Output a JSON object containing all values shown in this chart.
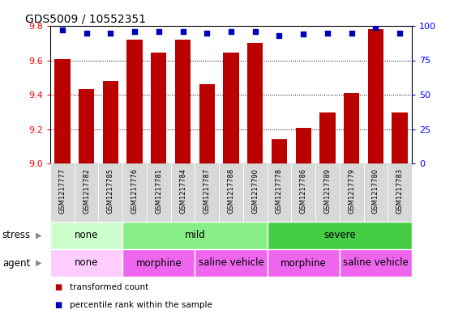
{
  "title": "GDS5009 / 10552351",
  "samples": [
    "GSM1217777",
    "GSM1217782",
    "GSM1217785",
    "GSM1217776",
    "GSM1217781",
    "GSM1217784",
    "GSM1217787",
    "GSM1217788",
    "GSM1217790",
    "GSM1217778",
    "GSM1217786",
    "GSM1217789",
    "GSM1217779",
    "GSM1217780",
    "GSM1217783"
  ],
  "transformed_count": [
    9.605,
    9.435,
    9.48,
    9.72,
    9.645,
    9.72,
    9.46,
    9.645,
    9.7,
    9.14,
    9.205,
    9.295,
    9.41,
    9.78,
    9.295
  ],
  "percentile_rank": [
    97,
    95,
    95,
    96,
    96,
    96,
    95,
    96,
    96,
    93,
    94,
    95,
    95,
    99,
    95
  ],
  "ylim_left": [
    9.0,
    9.8
  ],
  "ylim_right": [
    0,
    100
  ],
  "yticks_left": [
    9.0,
    9.2,
    9.4,
    9.6,
    9.8
  ],
  "yticks_right": [
    0,
    25,
    50,
    75,
    100
  ],
  "bar_color": "#bb0000",
  "dot_color": "#0000bb",
  "stress_groups": [
    {
      "label": "none",
      "start": 0,
      "end": 3,
      "color": "#ccffcc"
    },
    {
      "label": "mild",
      "start": 3,
      "end": 9,
      "color": "#88ee88"
    },
    {
      "label": "severe",
      "start": 9,
      "end": 15,
      "color": "#44cc44"
    }
  ],
  "agent_groups": [
    {
      "label": "none",
      "start": 0,
      "end": 3,
      "color": "#ffccff"
    },
    {
      "label": "morphine",
      "start": 3,
      "end": 6,
      "color": "#ee66ee"
    },
    {
      "label": "saline vehicle",
      "start": 6,
      "end": 9,
      "color": "#ee66ee"
    },
    {
      "label": "morphine",
      "start": 9,
      "end": 12,
      "color": "#ee66ee"
    },
    {
      "label": "saline vehicle",
      "start": 12,
      "end": 15,
      "color": "#ee66ee"
    }
  ],
  "stress_label": "stress",
  "agent_label": "agent",
  "legend_bar_label": "transformed count",
  "legend_dot_label": "percentile rank within the sample",
  "bar_color_legend": "#bb0000",
  "dot_color_legend": "#0000bb"
}
